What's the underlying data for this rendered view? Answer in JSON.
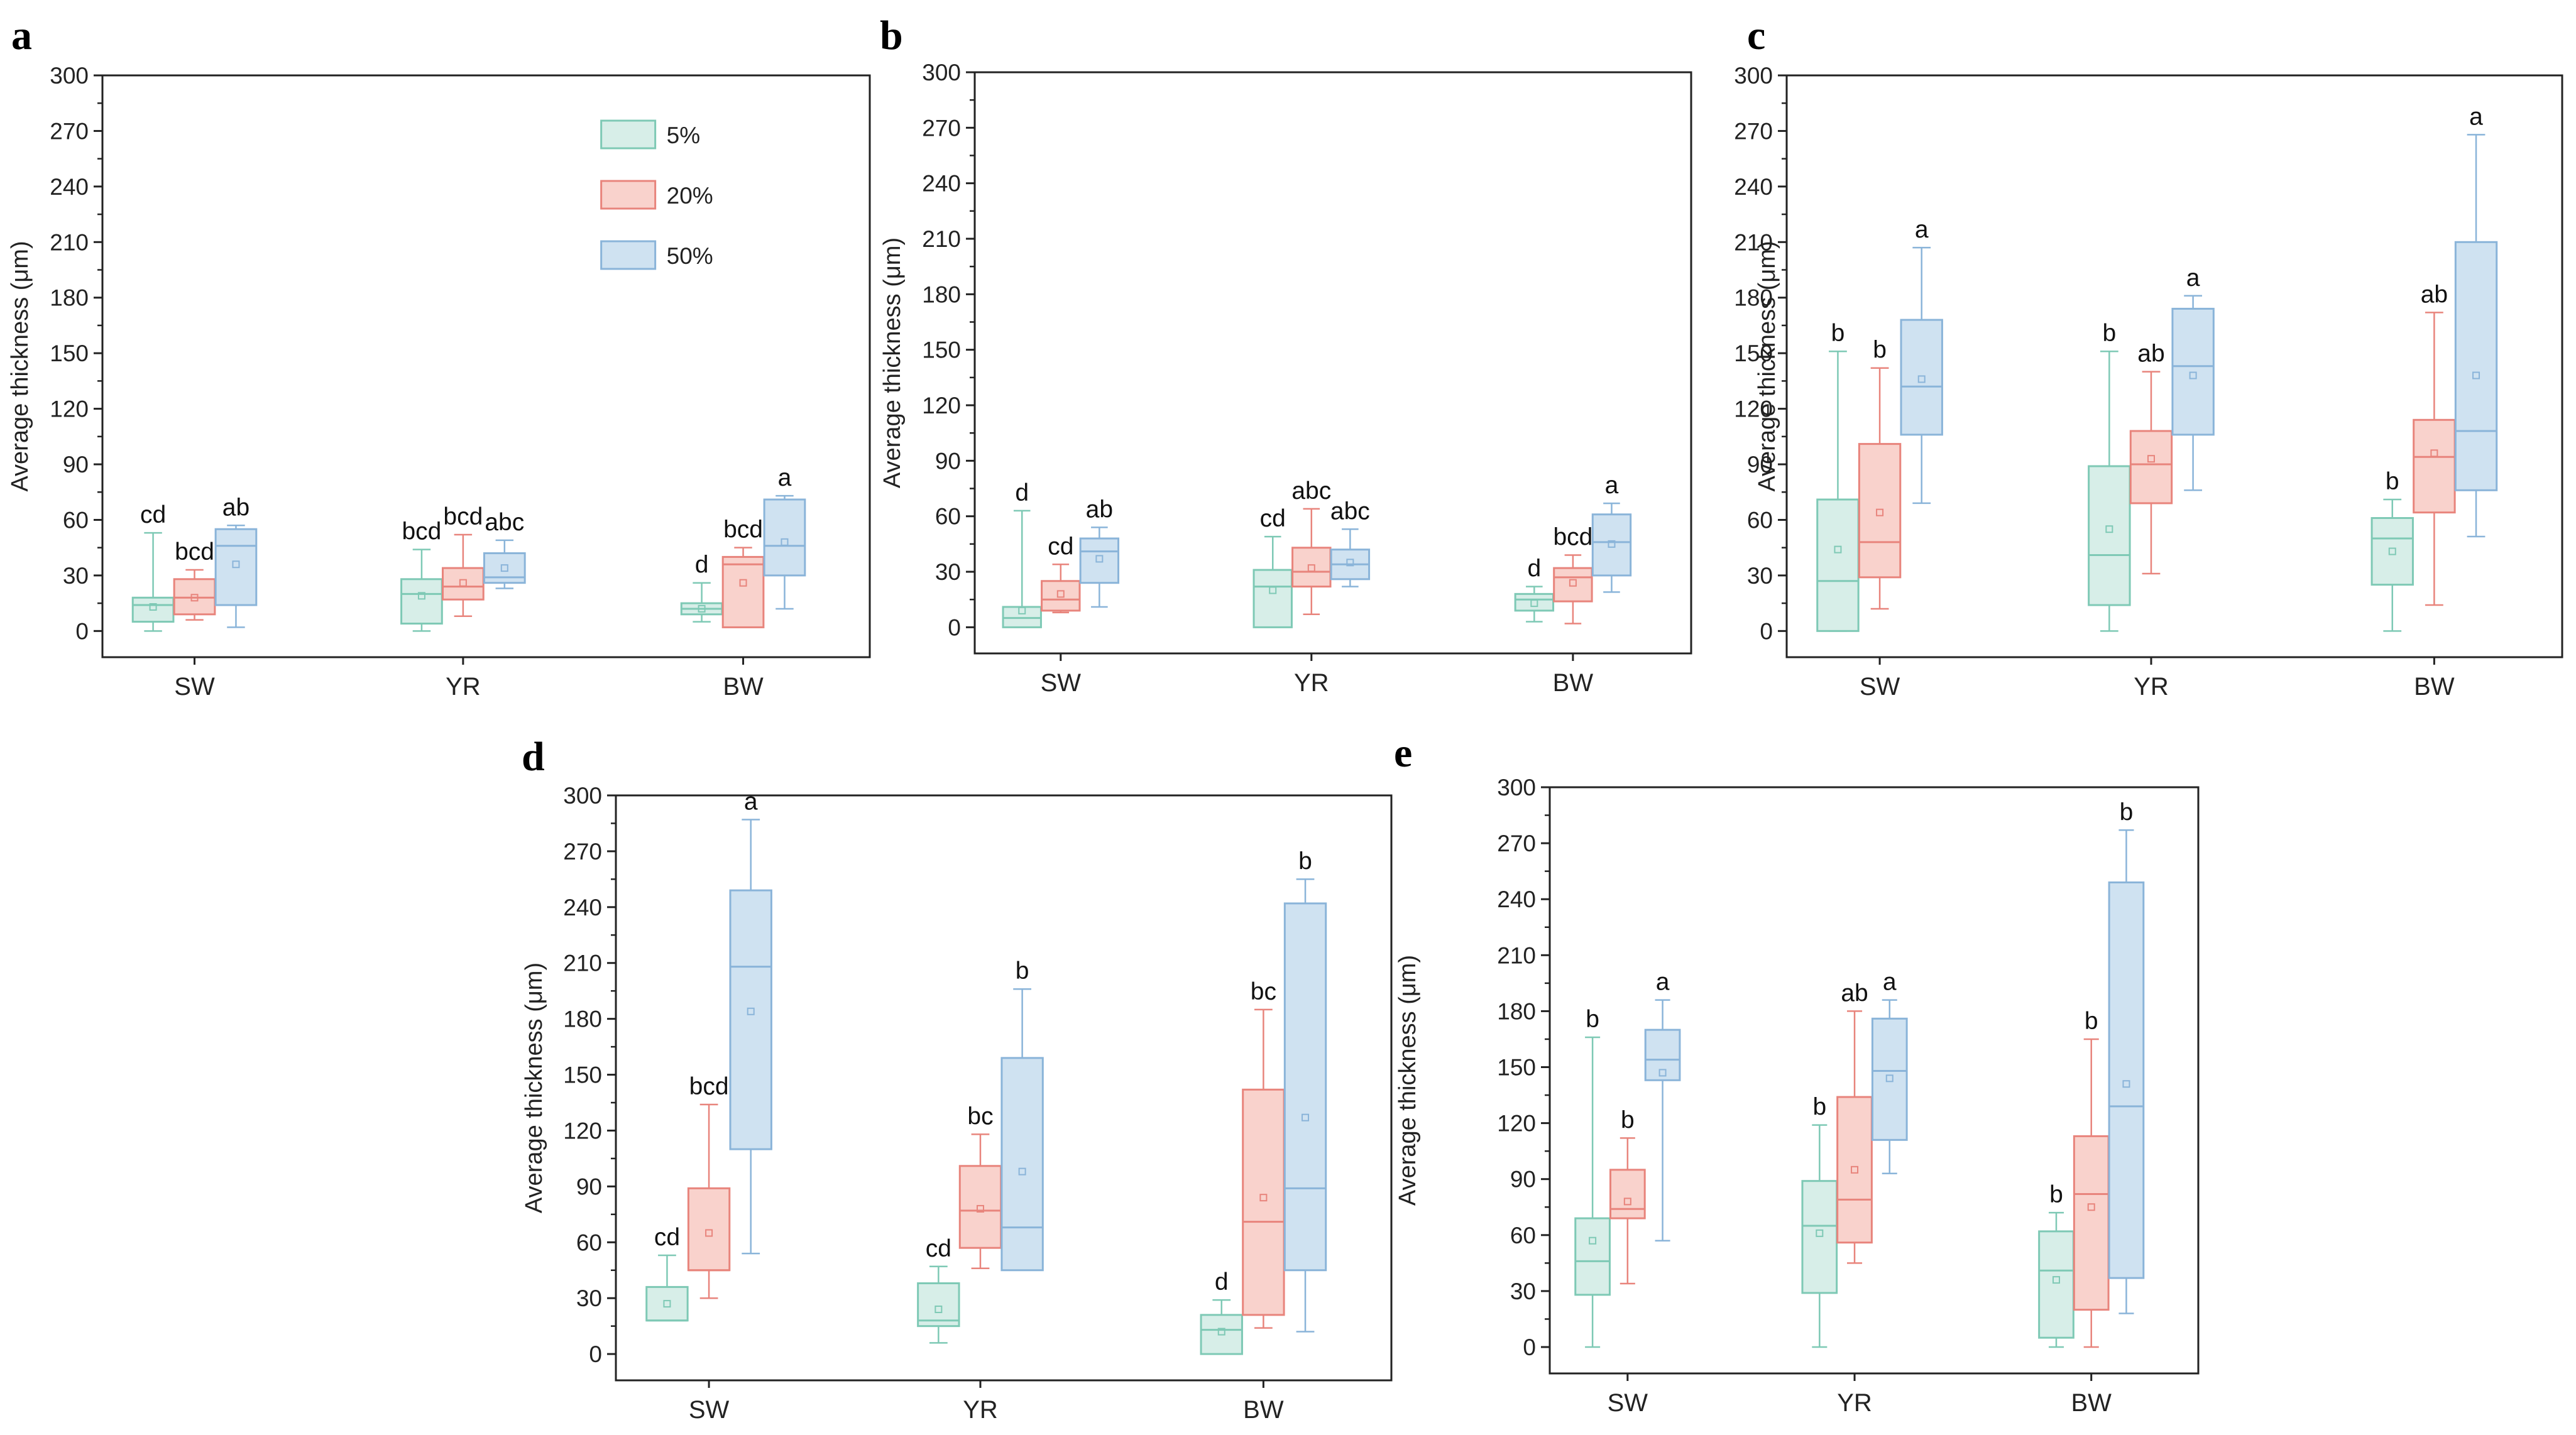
{
  "figure": {
    "ylabel": "Average thickness (μm)",
    "yticks": [
      0,
      30,
      60,
      90,
      120,
      150,
      180,
      210,
      240,
      270,
      300
    ],
    "categories": [
      "SW",
      "YR",
      "BW"
    ],
    "legend": [
      {
        "label": "5%",
        "fill": "#d7eee8",
        "stroke": "#7ec9b5"
      },
      {
        "label": "20%",
        "fill": "#f9d2cc",
        "stroke": "#e8847c"
      },
      {
        "label": "50%",
        "fill": "#cfe2f1",
        "stroke": "#8ab4d9"
      }
    ]
  },
  "chart_data": [
    {
      "panel": "a",
      "type": "box",
      "ylabel": "Average thickness (μm)",
      "ylim": [
        0,
        300
      ],
      "categories": [
        "SW",
        "YR",
        "BW"
      ],
      "legend_position": "top-right",
      "series": [
        {
          "name": "5%",
          "boxes": [
            {
              "min": 0,
              "q1": 5,
              "median": 14,
              "q3": 18,
              "max": 53,
              "mean": 13,
              "label": "cd"
            },
            {
              "min": 0,
              "q1": 4,
              "median": 20,
              "q3": 28,
              "max": 44,
              "mean": 19,
              "label": "bcd"
            },
            {
              "min": 5,
              "q1": 9,
              "median": 12,
              "q3": 15,
              "max": 26,
              "mean": 12,
              "label": "d"
            }
          ]
        },
        {
          "name": "20%",
          "boxes": [
            {
              "min": 6,
              "q1": 9,
              "median": 18,
              "q3": 28,
              "max": 33,
              "mean": 18,
              "label": "bcd"
            },
            {
              "min": 8,
              "q1": 17,
              "median": 24,
              "q3": 34,
              "max": 52,
              "mean": 26,
              "label": "bcd"
            },
            {
              "min": 2,
              "q1": 2,
              "median": 36,
              "q3": 40,
              "max": 45,
              "mean": 26,
              "label": "bcd"
            }
          ]
        },
        {
          "name": "50%",
          "boxes": [
            {
              "min": 2,
              "q1": 14,
              "median": 46,
              "q3": 55,
              "max": 57,
              "mean": 36,
              "label": "ab"
            },
            {
              "min": 23,
              "q1": 26,
              "median": 29,
              "q3": 42,
              "max": 49,
              "mean": 34,
              "label": "abc"
            },
            {
              "min": 12,
              "q1": 30,
              "median": 46,
              "q3": 71,
              "max": 73,
              "mean": 48,
              "label": "a"
            }
          ]
        }
      ]
    },
    {
      "panel": "b",
      "type": "box",
      "ylabel": "Average thickness (μm)",
      "ylim": [
        0,
        300
      ],
      "categories": [
        "SW",
        "YR",
        "BW"
      ],
      "series": [
        {
          "name": "5%",
          "boxes": [
            {
              "min": 0,
              "q1": 0,
              "median": 5,
              "q3": 11,
              "max": 63,
              "mean": 9,
              "label": "d"
            },
            {
              "min": 0,
              "q1": 0,
              "median": 22,
              "q3": 31,
              "max": 49,
              "mean": 20,
              "label": "cd"
            },
            {
              "min": 3,
              "q1": 9,
              "median": 15,
              "q3": 18,
              "max": 22,
              "mean": 13,
              "label": "d"
            }
          ]
        },
        {
          "name": "20%",
          "boxes": [
            {
              "min": 8,
              "q1": 9,
              "median": 15,
              "q3": 25,
              "max": 34,
              "mean": 18,
              "label": "cd"
            },
            {
              "min": 7,
              "q1": 22,
              "median": 30,
              "q3": 43,
              "max": 64,
              "mean": 32,
              "label": "abc"
            },
            {
              "min": 2,
              "q1": 14,
              "median": 27,
              "q3": 32,
              "max": 39,
              "mean": 24,
              "label": "bcd"
            }
          ]
        },
        {
          "name": "50%",
          "boxes": [
            {
              "min": 11,
              "q1": 24,
              "median": 41,
              "q3": 48,
              "max": 54,
              "mean": 37,
              "label": "ab"
            },
            {
              "min": 22,
              "q1": 26,
              "median": 34,
              "q3": 42,
              "max": 53,
              "mean": 35,
              "label": "abc"
            },
            {
              "min": 19,
              "q1": 28,
              "median": 46,
              "q3": 61,
              "max": 67,
              "mean": 45,
              "label": "a"
            }
          ]
        }
      ]
    },
    {
      "panel": "c",
      "type": "box",
      "ylabel": "Average thickness (μm)",
      "ylim": [
        0,
        300
      ],
      "categories": [
        "SW",
        "YR",
        "BW"
      ],
      "series": [
        {
          "name": "5%",
          "boxes": [
            {
              "min": 0,
              "q1": 0,
              "median": 27,
              "q3": 71,
              "max": 151,
              "mean": 44,
              "label": "b"
            },
            {
              "min": 0,
              "q1": 14,
              "median": 41,
              "q3": 89,
              "max": 151,
              "mean": 55,
              "label": "b"
            },
            {
              "min": 0,
              "q1": 25,
              "median": 50,
              "q3": 61,
              "max": 71,
              "mean": 43,
              "label": "b"
            }
          ]
        },
        {
          "name": "20%",
          "boxes": [
            {
              "min": 12,
              "q1": 29,
              "median": 48,
              "q3": 101,
              "max": 142,
              "mean": 64,
              "label": "b"
            },
            {
              "min": 31,
              "q1": 69,
              "median": 90,
              "q3": 108,
              "max": 140,
              "mean": 93,
              "label": "ab"
            },
            {
              "min": 14,
              "q1": 64,
              "median": 94,
              "q3": 114,
              "max": 172,
              "mean": 96,
              "label": "ab"
            }
          ]
        },
        {
          "name": "50%",
          "boxes": [
            {
              "min": 69,
              "q1": 106,
              "median": 132,
              "q3": 168,
              "max": 207,
              "mean": 136,
              "label": "a"
            },
            {
              "min": 76,
              "q1": 106,
              "median": 143,
              "q3": 174,
              "max": 181,
              "mean": 138,
              "label": "a"
            },
            {
              "min": 51,
              "q1": 76,
              "median": 108,
              "q3": 210,
              "max": 268,
              "mean": 138,
              "label": "a"
            }
          ]
        }
      ]
    },
    {
      "panel": "d",
      "type": "box",
      "ylabel": "Average thickness (μm)",
      "ylim": [
        0,
        300
      ],
      "categories": [
        "SW",
        "YR",
        "BW"
      ],
      "series": [
        {
          "name": "5%",
          "boxes": [
            {
              "min": 18,
              "q1": 18,
              "median": 18,
              "q3": 36,
              "max": 53,
              "mean": 27,
              "label": "cd"
            },
            {
              "min": 6,
              "q1": 15,
              "median": 18,
              "q3": 38,
              "max": 47,
              "mean": 24,
              "label": "cd"
            },
            {
              "min": 0,
              "q1": 0,
              "median": 13,
              "q3": 21,
              "max": 29,
              "mean": 12,
              "label": "d"
            }
          ]
        },
        {
          "name": "20%",
          "boxes": [
            {
              "min": 30,
              "q1": 45,
              "median": 45,
              "q3": 89,
              "max": 134,
              "mean": 65,
              "label": "bcd"
            },
            {
              "min": 46,
              "q1": 57,
              "median": 77,
              "q3": 101,
              "max": 118,
              "mean": 78,
              "label": "bc"
            },
            {
              "min": 14,
              "q1": 21,
              "median": 71,
              "q3": 142,
              "max": 185,
              "mean": 84,
              "label": "bc"
            }
          ]
        },
        {
          "name": "50%",
          "boxes": [
            {
              "min": 54,
              "q1": 110,
              "median": 208,
              "q3": 249,
              "max": 287,
              "mean": 184,
              "label": "a"
            },
            {
              "min": 45,
              "q1": 45,
              "median": 68,
              "q3": 159,
              "max": 196,
              "mean": 98,
              "label": "b"
            },
            {
              "min": 12,
              "q1": 45,
              "median": 89,
              "q3": 242,
              "max": 255,
              "mean": 127,
              "label": "b"
            }
          ]
        }
      ]
    },
    {
      "panel": "e",
      "type": "box",
      "ylabel": "Average thickness (μm)",
      "ylim": [
        0,
        300
      ],
      "categories": [
        "SW",
        "YR",
        "BW"
      ],
      "series": [
        {
          "name": "5%",
          "boxes": [
            {
              "min": 0,
              "q1": 28,
              "median": 46,
              "q3": 69,
              "max": 166,
              "mean": 57,
              "label": "b"
            },
            {
              "min": 0,
              "q1": 29,
              "median": 65,
              "q3": 89,
              "max": 119,
              "mean": 61,
              "label": "b"
            },
            {
              "min": 0,
              "q1": 5,
              "median": 41,
              "q3": 62,
              "max": 72,
              "mean": 36,
              "label": "b"
            }
          ]
        },
        {
          "name": "20%",
          "boxes": [
            {
              "min": 34,
              "q1": 69,
              "median": 74,
              "q3": 95,
              "max": 112,
              "mean": 78,
              "label": "b"
            },
            {
              "min": 45,
              "q1": 56,
              "median": 79,
              "q3": 134,
              "max": 180,
              "mean": 95,
              "label": "ab"
            },
            {
              "min": 0,
              "q1": 20,
              "median": 82,
              "q3": 113,
              "max": 165,
              "mean": 75,
              "label": "b"
            }
          ]
        },
        {
          "name": "50%",
          "boxes": [
            {
              "min": 57,
              "q1": 143,
              "median": 154,
              "q3": 170,
              "max": 186,
              "mean": 147,
              "label": "a"
            },
            {
              "min": 93,
              "q1": 111,
              "median": 148,
              "q3": 176,
              "max": 186,
              "mean": 144,
              "label": "a"
            },
            {
              "min": 18,
              "q1": 37,
              "median": 129,
              "q3": 249,
              "max": 277,
              "mean": 141,
              "label": "b"
            }
          ]
        }
      ]
    }
  ]
}
